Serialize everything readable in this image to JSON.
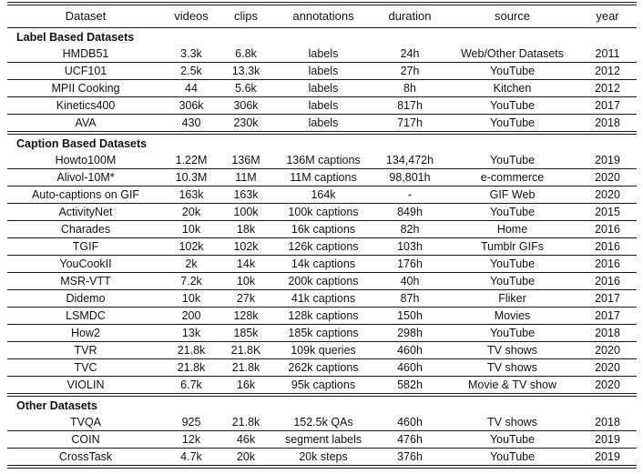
{
  "table": {
    "columns": [
      {
        "key": "dataset",
        "label": "Dataset"
      },
      {
        "key": "videos",
        "label": "videos"
      },
      {
        "key": "clips",
        "label": "clips"
      },
      {
        "key": "annotations",
        "label": "annotations"
      },
      {
        "key": "duration",
        "label": "duration"
      },
      {
        "key": "source",
        "label": "source"
      },
      {
        "key": "year",
        "label": "year"
      }
    ],
    "sections": [
      {
        "title": "Label Based Datasets",
        "rows": [
          [
            "HMDB51",
            "3.3k",
            "6.8k",
            "labels",
            "24h",
            "Web/Other Datasets",
            "2011"
          ],
          [
            "UCF101",
            "2.5k",
            "13.3k",
            "labels",
            "27h",
            "YouTube",
            "2012"
          ],
          [
            "MPII Cooking",
            "44",
            "5.6k",
            "labels",
            "8h",
            "Kitchen",
            "2012"
          ],
          [
            "Kinetics400",
            "306k",
            "306k",
            "labels",
            "817h",
            "YouTube",
            "2017"
          ],
          [
            "AVA",
            "430",
            "230k",
            "labels",
            "717h",
            "YouTube",
            "2018"
          ]
        ]
      },
      {
        "title": "Caption Based Datasets",
        "rows": [
          [
            "Howto100M",
            "1.22M",
            "136M",
            "136M captions",
            "134,472h",
            "YouTube",
            "2019"
          ],
          [
            "Alivol-10M*",
            "10.3M",
            "11M",
            "11M captions",
            "98,801h",
            "e-commerce",
            "2020"
          ],
          [
            "Auto-captions on GIF",
            "163k",
            "163k",
            "164k",
            "-",
            "GIF Web",
            "2020"
          ],
          [
            "ActivityNet",
            "20k",
            "100k",
            "100k captions",
            "849h",
            "YouTube",
            "2015"
          ],
          [
            "Charades",
            "10k",
            "18k",
            "16k captions",
            "82h",
            "Home",
            "2016"
          ],
          [
            "TGIF",
            "102k",
            "102k",
            "126k captions",
            "103h",
            "Tumblr GIFs",
            "2016"
          ],
          [
            "YouCookII",
            "2k",
            "14k",
            "14k captions",
            "176h",
            "YouTube",
            "2016"
          ],
          [
            "MSR-VTT",
            "7.2k",
            "10k",
            "200k captions",
            "40h",
            "YouTube",
            "2016"
          ],
          [
            "Didemo",
            "10k",
            "27k",
            "41k captions",
            "87h",
            "Fliker",
            "2017"
          ],
          [
            "LSMDC",
            "200",
            "128k",
            "128k captions",
            "150h",
            "Movies",
            "2017"
          ],
          [
            "How2",
            "13k",
            "185k",
            "185k captions",
            "298h",
            "YouTube",
            "2018"
          ],
          [
            "TVR",
            "21.8k",
            "21.8K",
            "109k queries",
            "460h",
            "TV shows",
            "2020"
          ],
          [
            "TVC",
            "21.8k",
            "21.8k",
            "262k captions",
            "460h",
            "TV shows",
            "2020"
          ],
          [
            "VIOLIN",
            "6.7k",
            "16k",
            "95k captions",
            "582h",
            "Movie & TV show",
            "2020"
          ]
        ]
      },
      {
        "title": "Other Datasets",
        "rows": [
          [
            "TVQA",
            "925",
            "21.8k",
            "152.5k QAs",
            "460h",
            "TV shows",
            "2018"
          ],
          [
            "COIN",
            "12k",
            "46k",
            "segment labels",
            "476h",
            "YouTube",
            "2019"
          ],
          [
            "CrossTask",
            "4.7k",
            "20k",
            "20k steps",
            "376h",
            "YouTube",
            "2019"
          ]
        ]
      }
    ]
  }
}
